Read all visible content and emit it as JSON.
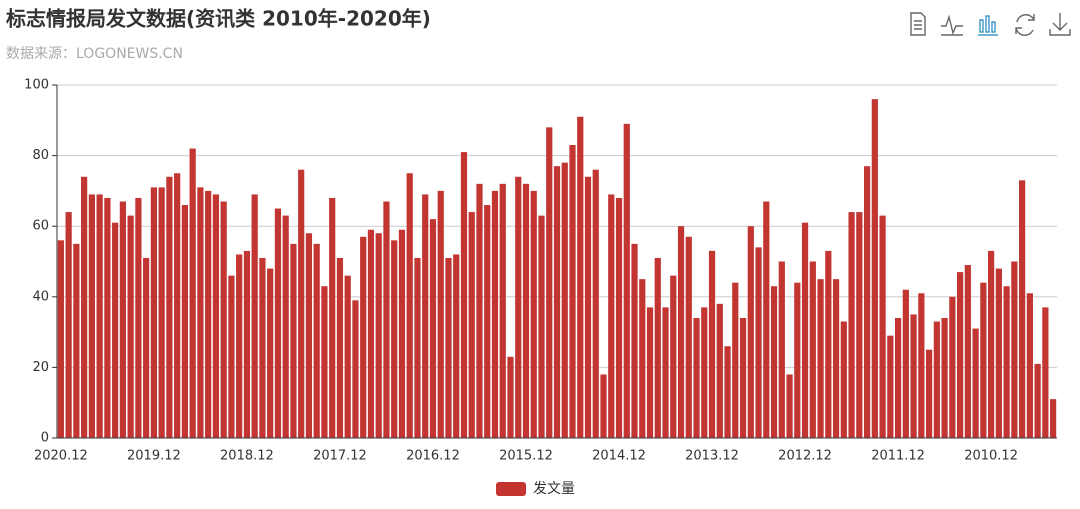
{
  "chart_data": {
    "type": "bar",
    "title": "标志情报局发文数据(资讯类 2010年-2020年)",
    "subtitle": "数据来源：LOGONEWS.CN",
    "categories": [
      "2020.12",
      null,
      null,
      null,
      null,
      null,
      null,
      null,
      null,
      null,
      null,
      null,
      "2019.12",
      null,
      null,
      null,
      null,
      null,
      null,
      null,
      null,
      null,
      null,
      null,
      "2018.12",
      null,
      null,
      null,
      null,
      null,
      null,
      null,
      null,
      null,
      null,
      null,
      "2017.12",
      null,
      null,
      null,
      null,
      null,
      null,
      null,
      null,
      null,
      null,
      null,
      "2016.12",
      null,
      null,
      null,
      null,
      null,
      null,
      null,
      null,
      null,
      null,
      null,
      "2015.12",
      null,
      null,
      null,
      null,
      null,
      null,
      null,
      null,
      null,
      null,
      null,
      "2014.12",
      null,
      null,
      null,
      null,
      null,
      null,
      null,
      null,
      null,
      null,
      null,
      "2013.12",
      null,
      null,
      null,
      null,
      null,
      null,
      null,
      null,
      null,
      null,
      null,
      "2012.12",
      null,
      null,
      null,
      null,
      null,
      null,
      null,
      null,
      null,
      null,
      null,
      "2011.12",
      null,
      null,
      null,
      null,
      null,
      null,
      null,
      null,
      null,
      null,
      null,
      "2010.12",
      null,
      null,
      null,
      null,
      null,
      null,
      null,
      null
    ],
    "series": [
      {
        "name": "发文量",
        "color": "#c23531",
        "values": [
          56,
          64,
          55,
          74,
          69,
          69,
          68,
          61,
          67,
          63,
          68,
          51,
          71,
          71,
          74,
          75,
          66,
          82,
          71,
          70,
          69,
          67,
          46,
          52,
          53,
          69,
          51,
          48,
          65,
          63,
          55,
          76,
          58,
          55,
          43,
          68,
          51,
          46,
          39,
          57,
          59,
          58,
          67,
          56,
          59,
          75,
          51,
          69,
          62,
          70,
          51,
          52,
          81,
          64,
          72,
          66,
          70,
          72,
          23,
          74,
          72,
          70,
          63,
          88,
          77,
          78,
          83,
          91,
          74,
          76,
          18,
          69,
          68,
          89,
          55,
          45,
          37,
          51,
          37,
          46,
          60,
          57,
          34,
          37,
          53,
          38,
          26,
          44,
          34,
          60,
          54,
          67,
          43,
          50,
          18,
          44,
          61,
          50,
          45,
          53,
          45,
          33,
          64,
          64,
          77,
          96,
          63,
          29,
          34,
          42,
          35,
          41,
          25,
          33,
          34,
          40,
          47,
          49,
          31,
          44,
          53,
          48,
          43,
          50,
          73,
          41,
          21,
          37,
          11
        ]
      }
    ],
    "ylim": [
      0,
      100
    ],
    "yticks": [
      0,
      20,
      40,
      60,
      80,
      100
    ],
    "grid": true,
    "legend": "bottom"
  }
}
